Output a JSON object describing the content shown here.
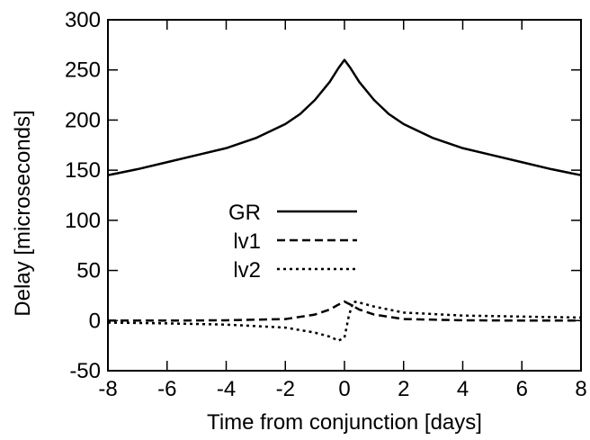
{
  "chart_data": {
    "type": "line",
    "xlabel": "Time from conjunction [days]",
    "ylabel": "Delay [microseconds]",
    "xlim": [
      -8,
      8
    ],
    "ylim": [
      -50,
      300
    ],
    "xticks": [
      -8,
      -6,
      -4,
      -2,
      0,
      2,
      4,
      6,
      8
    ],
    "yticks": [
      -50,
      0,
      50,
      100,
      150,
      200,
      250,
      300
    ],
    "grid": false,
    "legend_position": "center-left",
    "series": [
      {
        "name": "GR",
        "style": "solid",
        "color": "#000000",
        "points": [
          [
            -8,
            145
          ],
          [
            -7,
            151
          ],
          [
            -6,
            158
          ],
          [
            -5,
            165
          ],
          [
            -4,
            172
          ],
          [
            -3,
            182
          ],
          [
            -2,
            196
          ],
          [
            -1.5,
            206
          ],
          [
            -1,
            220
          ],
          [
            -0.5,
            238
          ],
          [
            -0.2,
            252
          ],
          [
            0,
            260
          ],
          [
            0.2,
            252
          ],
          [
            0.5,
            238
          ],
          [
            1,
            220
          ],
          [
            1.5,
            206
          ],
          [
            2,
            196
          ],
          [
            3,
            182
          ],
          [
            4,
            172
          ],
          [
            5,
            165
          ],
          [
            6,
            158
          ],
          [
            7,
            151
          ],
          [
            8,
            145
          ]
        ]
      },
      {
        "name": "lv1",
        "style": "dashed",
        "color": "#000000",
        "points": [
          [
            -8,
            0
          ],
          [
            -6,
            0
          ],
          [
            -4,
            0.3
          ],
          [
            -2,
            1.5
          ],
          [
            -1,
            6
          ],
          [
            -0.5,
            11
          ],
          [
            -0.2,
            16
          ],
          [
            0,
            19
          ],
          [
            0.2,
            16
          ],
          [
            0.5,
            11
          ],
          [
            1,
            6
          ],
          [
            2,
            1.5
          ],
          [
            4,
            0.3
          ],
          [
            6,
            0
          ],
          [
            8,
            0
          ]
        ]
      },
      {
        "name": "lv2",
        "style": "dotted",
        "color": "#000000",
        "points": [
          [
            -8,
            -2
          ],
          [
            -6,
            -2.8
          ],
          [
            -4,
            -4
          ],
          [
            -2,
            -7
          ],
          [
            -1,
            -12
          ],
          [
            -0.5,
            -16
          ],
          [
            -0.2,
            -20
          ],
          [
            0,
            -17
          ],
          [
            0.15,
            5
          ],
          [
            0.3,
            19
          ],
          [
            0.5,
            18
          ],
          [
            1,
            14
          ],
          [
            2,
            8
          ],
          [
            4,
            5
          ],
          [
            6,
            4
          ],
          [
            8,
            3
          ]
        ]
      }
    ]
  }
}
